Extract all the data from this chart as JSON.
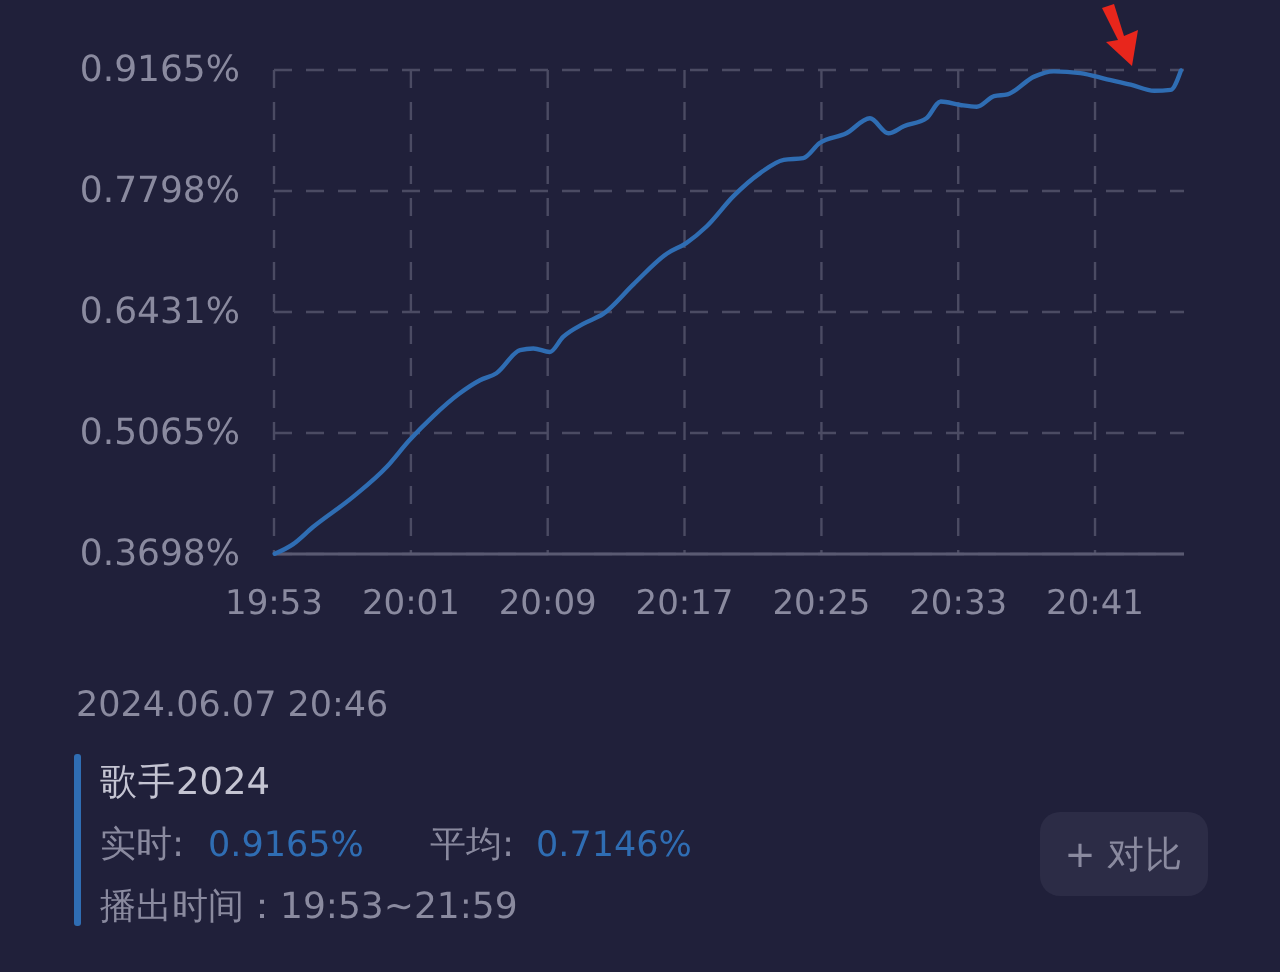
{
  "chart_data": {
    "type": "line",
    "xlim": [
      19.8833,
      20.77
    ],
    "xticks": [
      {
        "value": 19.8833,
        "label": "19:53"
      },
      {
        "value": 20.0167,
        "label": "20:01"
      },
      {
        "value": 20.15,
        "label": "20:09"
      },
      {
        "value": 20.2833,
        "label": "20:17"
      },
      {
        "value": 20.4167,
        "label": "20:25"
      },
      {
        "value": 20.55,
        "label": "20:33"
      },
      {
        "value": 20.6833,
        "label": "20:41"
      }
    ],
    "ylim": [
      0.3698,
      0.9165
    ],
    "yticks": [
      {
        "value": 0.3698,
        "label": "0.3698%"
      },
      {
        "value": 0.5065,
        "label": "0.5065%"
      },
      {
        "value": 0.6431,
        "label": "0.6431%"
      },
      {
        "value": 0.7798,
        "label": "0.7798%"
      },
      {
        "value": 0.9165,
        "label": "0.9165%"
      }
    ],
    "grid": true,
    "x": [
      19.884,
      19.902,
      19.921,
      19.96,
      19.993,
      20.015,
      20.038,
      20.064,
      20.084,
      20.1,
      20.123,
      20.136,
      20.152,
      20.165,
      20.185,
      20.204,
      20.234,
      20.266,
      20.285,
      20.305,
      20.331,
      20.357,
      20.38,
      20.399,
      20.415,
      20.441,
      20.464,
      20.482,
      20.497,
      20.519,
      20.533,
      20.552,
      20.568,
      20.585,
      20.598,
      20.624,
      20.643,
      20.669,
      20.695,
      20.718,
      20.741,
      20.757,
      20.767
    ],
    "series": [
      {
        "color": "#2f6db3",
        "values": [
          0.37,
          0.381,
          0.4,
          0.434,
          0.468,
          0.498,
          0.525,
          0.551,
          0.566,
          0.574,
          0.6,
          0.602,
          0.598,
          0.615,
          0.63,
          0.641,
          0.675,
          0.709,
          0.721,
          0.74,
          0.774,
          0.8,
          0.815,
          0.817,
          0.834,
          0.845,
          0.862,
          0.845,
          0.853,
          0.862,
          0.881,
          0.877,
          0.875,
          0.887,
          0.889,
          0.909,
          0.915,
          0.913,
          0.906,
          0.9,
          0.893,
          0.894,
          0.916
        ]
      }
    ],
    "annotations": [
      "2024.06.07 20:46",
      "歌手2024",
      "实时:",
      "0.9165%",
      "平均:",
      "0.7146%",
      "播出时间：19:53~21:59",
      "+ 对比"
    ]
  }
}
